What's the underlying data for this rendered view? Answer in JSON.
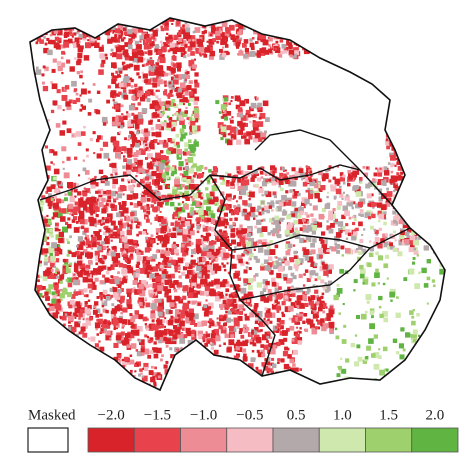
{
  "legend": {
    "masked_label": "Masked",
    "labels": [
      "−2.0",
      "−1.5",
      "−1.0",
      "−0.5",
      "0.5",
      "1.0",
      "1.5",
      "2.0"
    ],
    "colors": [
      "#d9232b",
      "#e8434d",
      "#ee8c96",
      "#f6bcc4",
      "#b3a9ab",
      "#cfe8ad",
      "#9fd06e",
      "#5fb442"
    ]
  }
}
